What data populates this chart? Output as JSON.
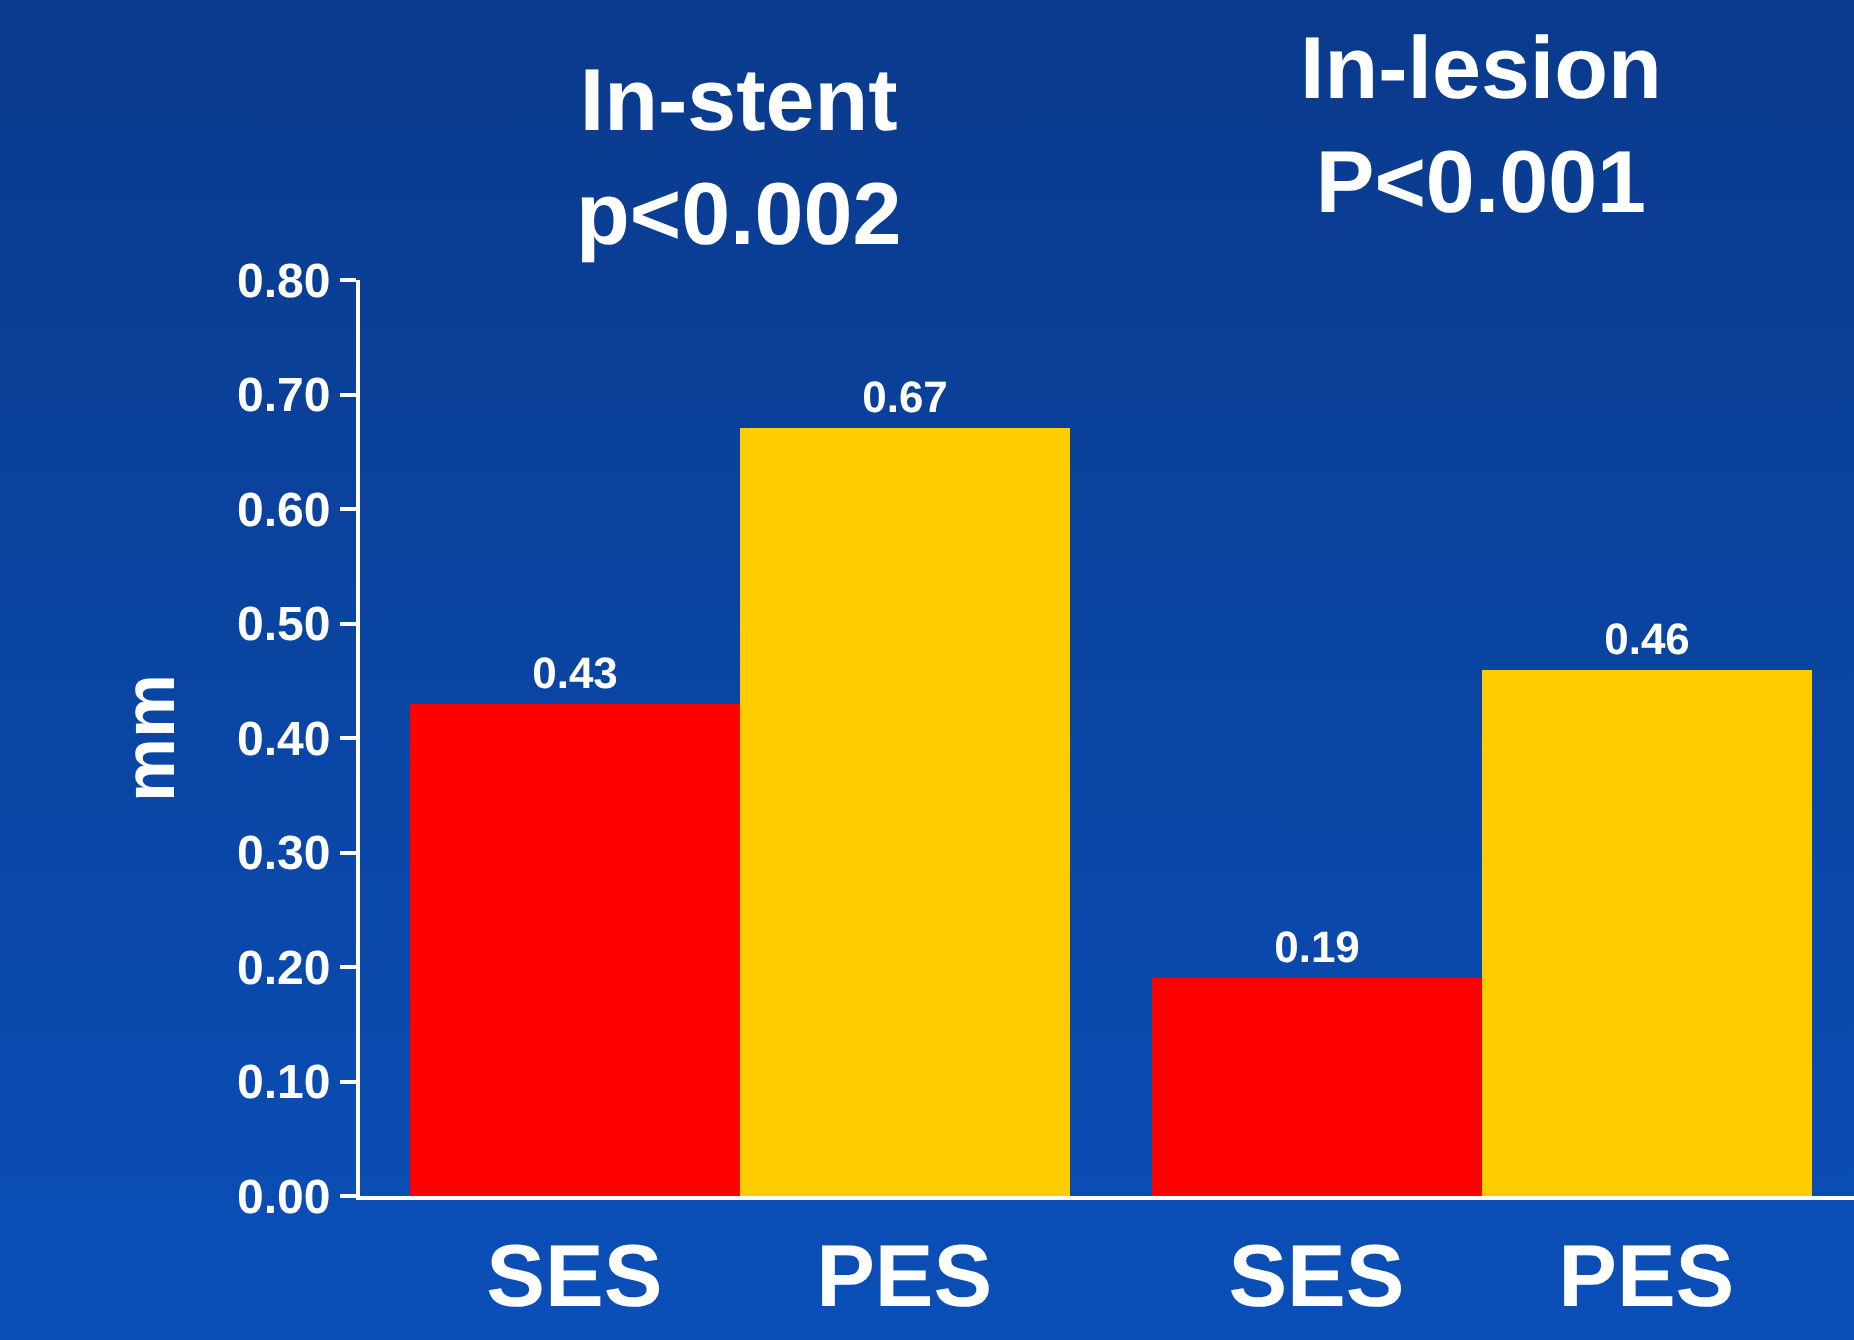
{
  "chart_data": {
    "type": "bar",
    "ylabel": "mm",
    "categories": [
      "SES",
      "PES",
      "SES",
      "PES"
    ],
    "values": [
      0.43,
      0.67,
      0.19,
      0.46
    ],
    "colors": [
      "#ff0000",
      "#ffcc00",
      "#ff0000",
      "#ffcc00"
    ],
    "annotations": [
      "In-stent\np<0.002",
      "In-lesion\nP<0.001"
    ],
    "ylim": [
      0,
      0.8
    ],
    "yticks": [
      {
        "value": 0,
        "label": "0.00"
      },
      {
        "value": 0.1,
        "label": "0.10"
      },
      {
        "value": 0.2,
        "label": "0.20"
      },
      {
        "value": 0.3,
        "label": "0.30"
      },
      {
        "value": 0.4,
        "label": "0.40"
      },
      {
        "value": 0.5,
        "label": "0.50"
      },
      {
        "value": 0.6,
        "label": "0.60"
      },
      {
        "value": 0.7,
        "label": "0.70"
      },
      {
        "value": 0.8,
        "label": "0.80"
      }
    ],
    "data_labels": true,
    "grid": false,
    "legend": false
  }
}
